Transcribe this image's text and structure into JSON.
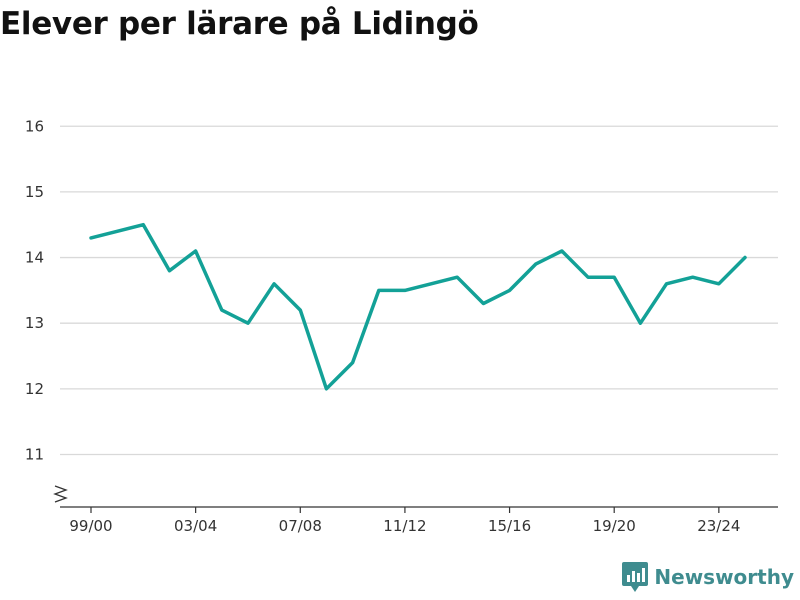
{
  "title": "Elever per lärare på Lidingö",
  "brand": {
    "name": "Newsworthy",
    "icon": "newsworthy-logo-icon"
  },
  "colors": {
    "line": "#13a197",
    "grid": "#d9d9d9",
    "axis": "#333333",
    "brand": "#3f8c8f"
  },
  "chart_data": {
    "type": "line",
    "title": "Elever per lärare på Lidingö",
    "xlabel": "",
    "ylabel": "",
    "x": [
      "99/00",
      "00/01",
      "01/02",
      "02/03",
      "03/04",
      "04/05",
      "05/06",
      "06/07",
      "07/08",
      "08/09",
      "09/10",
      "10/11",
      "11/12",
      "12/13",
      "13/14",
      "14/15",
      "15/16",
      "16/17",
      "17/18",
      "18/19",
      "19/20",
      "20/21",
      "21/22",
      "22/23",
      "23/24",
      "24/25"
    ],
    "x_ticks": [
      "99/00",
      "03/04",
      "07/08",
      "11/12",
      "15/16",
      "19/20",
      "23/24"
    ],
    "y_ticks": [
      11,
      12,
      13,
      14,
      15,
      16
    ],
    "ylim": [
      10.2,
      16.4
    ],
    "y_axis_break": true,
    "grid": true,
    "series": [
      {
        "values": [
          14.3,
          14.4,
          14.5,
          13.8,
          14.1,
          13.2,
          13.0,
          13.6,
          13.2,
          12.0,
          12.4,
          13.5,
          13.5,
          13.6,
          13.7,
          13.3,
          13.5,
          13.9,
          14.1,
          13.7,
          13.7,
          13.0,
          13.6,
          13.7,
          13.6,
          14.0
        ]
      }
    ]
  }
}
